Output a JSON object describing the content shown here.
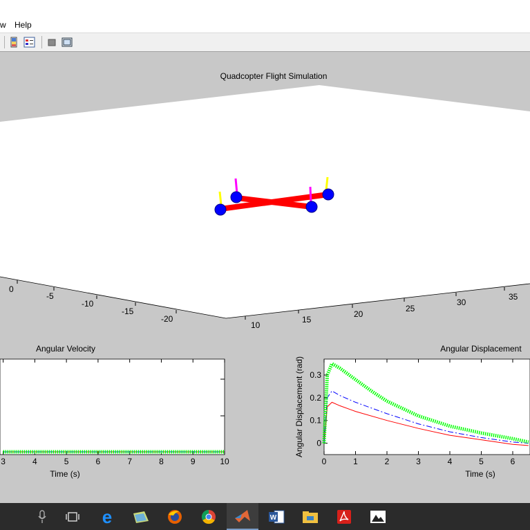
{
  "menu": {
    "view_partial": "w",
    "help": "Help"
  },
  "toolbar": {
    "icons": [
      "colorbar-icon",
      "legend-icon",
      "hide-plot-tools-icon",
      "show-plot-tools-icon"
    ]
  },
  "plot3d": {
    "title": "Quadcopter Flight Simulation",
    "x_ticks": [
      "0",
      "-5",
      "-10",
      "-15",
      "-20"
    ],
    "y_ticks": [
      "10",
      "15",
      "20",
      "25",
      "30",
      "35"
    ],
    "arm_color": "#ff0000",
    "rotor_color": "#0000ff",
    "thrust_colors": [
      "#ffff00",
      "#ff00ff"
    ]
  },
  "angular_velocity": {
    "title": "Angular Velocity",
    "xlabel": "Time (s)",
    "x_ticks": [
      "3",
      "4",
      "5",
      "6",
      "7",
      "8",
      "9",
      "10"
    ]
  },
  "angular_displacement": {
    "title": "Angular Displacement",
    "xlabel": "Time (s)",
    "ylabel": "Angular Displacement (rad)",
    "x_ticks": [
      "0",
      "1",
      "2",
      "3",
      "4",
      "5",
      "6"
    ],
    "y_ticks": [
      "0",
      "0.1",
      "0.2",
      "0.3"
    ]
  },
  "chart_data": [
    {
      "type": "line",
      "title": "Angular Velocity",
      "xlabel": "Time (s)",
      "xlim": [
        2.9,
        10
      ],
      "series": [
        {
          "color": "#00ff00",
          "style": "dotted-thick",
          "x": [
            3,
            4,
            5,
            6,
            7,
            8,
            9,
            10
          ],
          "y": [
            0,
            0,
            0,
            0,
            0,
            0,
            0,
            0
          ]
        },
        {
          "color": "#0000ff",
          "style": "dash-dot",
          "x": [
            3,
            10
          ],
          "y": [
            0,
            0
          ]
        },
        {
          "color": "#ff0000",
          "style": "solid",
          "x": [
            3,
            10
          ],
          "y": [
            0,
            0
          ]
        }
      ]
    },
    {
      "type": "line",
      "title": "Angular Displacement",
      "xlabel": "Time (s)",
      "ylabel": "Angular Displacement (rad)",
      "ylim": [
        -0.05,
        0.37
      ],
      "xlim": [
        0,
        6.5
      ],
      "series": [
        {
          "color": "#00ff00",
          "style": "dotted-thick",
          "x": [
            0,
            0.1,
            0.25,
            0.5,
            1,
            1.5,
            2,
            3,
            4,
            5,
            6,
            6.5
          ],
          "y": [
            0,
            0.3,
            0.35,
            0.33,
            0.28,
            0.23,
            0.185,
            0.12,
            0.075,
            0.045,
            0.02,
            0.005
          ]
        },
        {
          "color": "#0000ff",
          "style": "dash-dot",
          "x": [
            0,
            0.1,
            0.25,
            0.5,
            1,
            2,
            3,
            4,
            5,
            6,
            6.5
          ],
          "y": [
            0,
            0.2,
            0.23,
            0.21,
            0.18,
            0.13,
            0.085,
            0.05,
            0.025,
            0.005,
            0
          ]
        },
        {
          "color": "#ff0000",
          "style": "solid",
          "x": [
            0,
            0.1,
            0.25,
            0.5,
            1,
            2,
            3,
            4,
            5,
            6,
            6.5
          ],
          "y": [
            0,
            0.16,
            0.18,
            0.165,
            0.14,
            0.1,
            0.065,
            0.035,
            0.015,
            -0.005,
            -0.01
          ]
        }
      ]
    }
  ]
}
